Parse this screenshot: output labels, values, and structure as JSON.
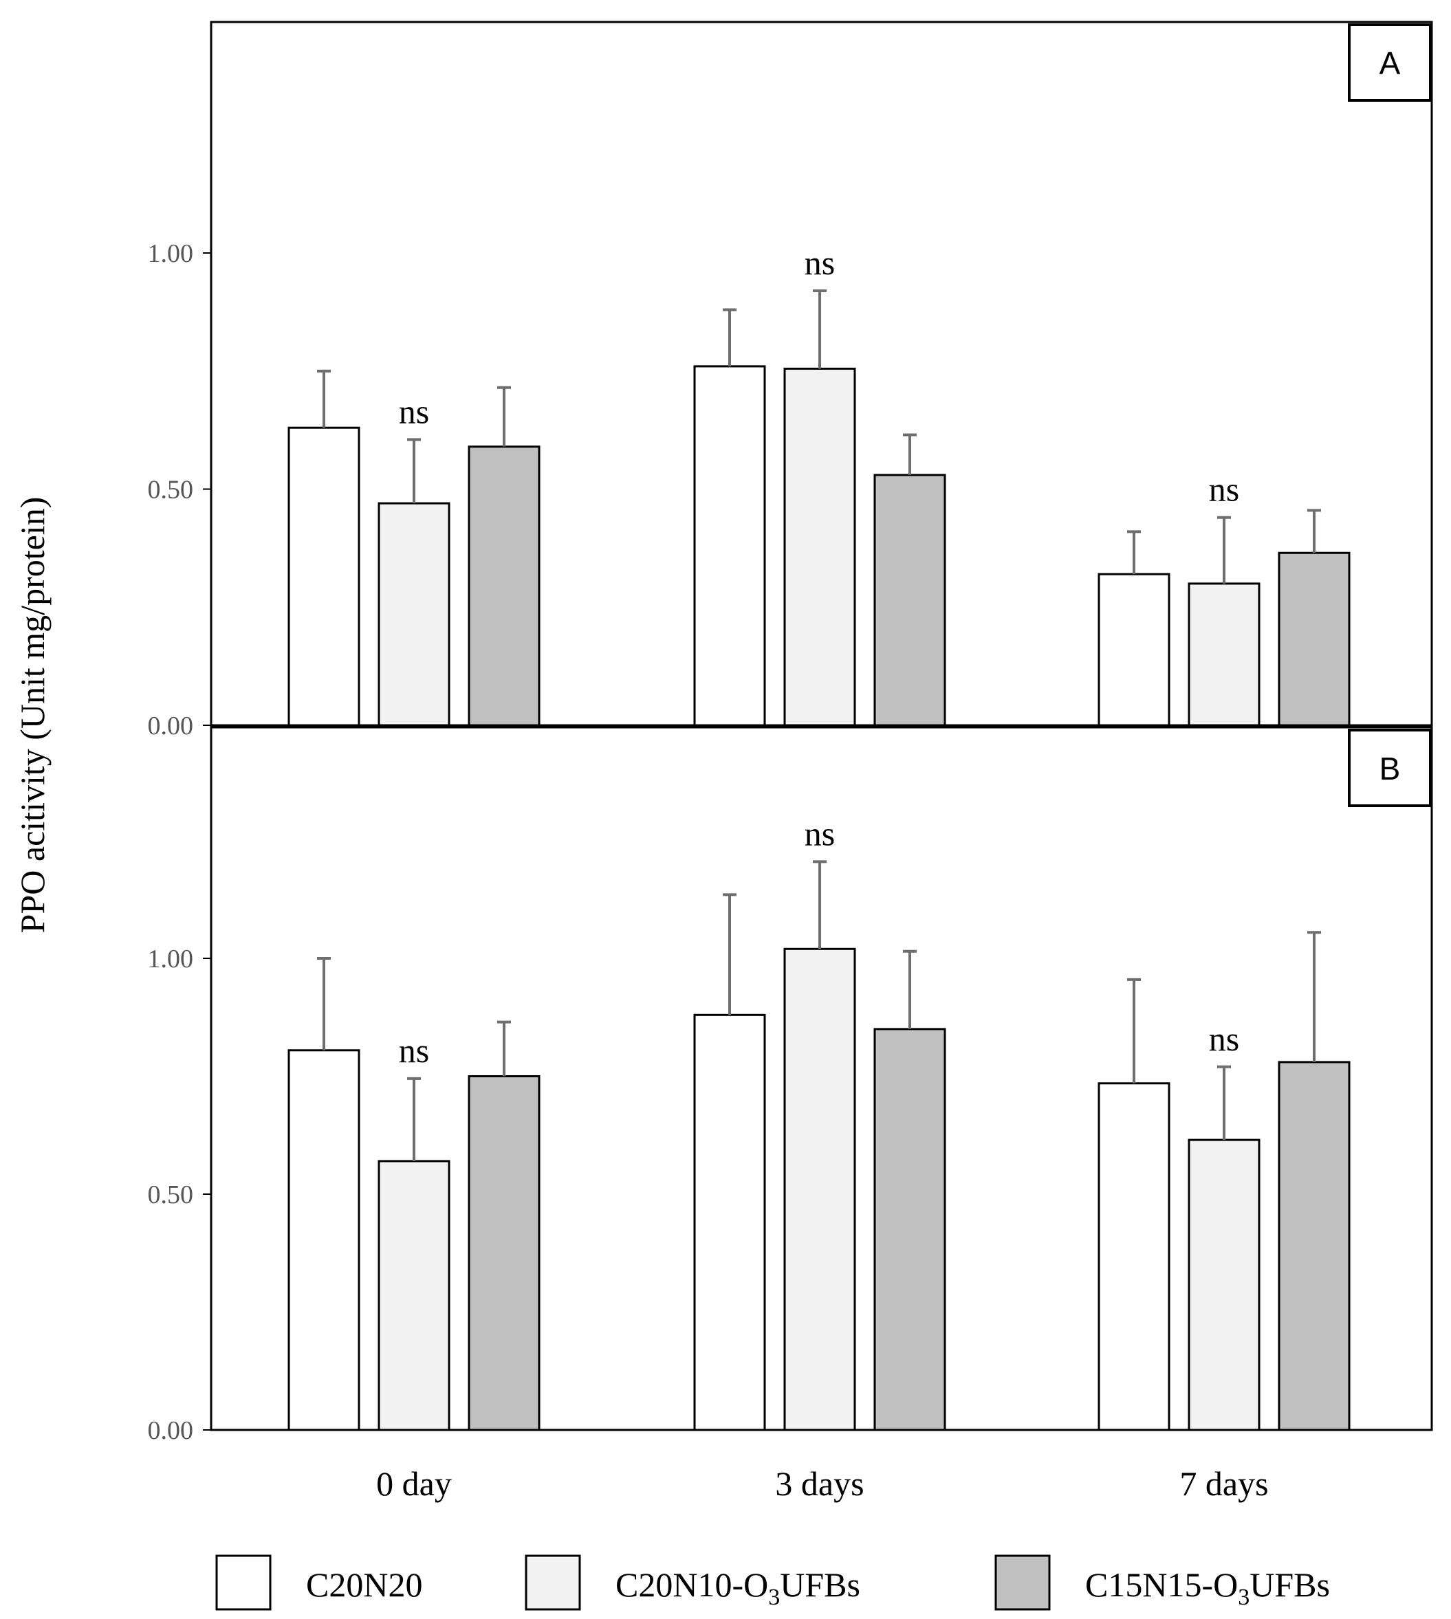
{
  "chart_data": {
    "type": "bar",
    "ylabel": "PPO acitivity (Unit mg/protein)",
    "categories": [
      "0 day",
      "3 days",
      "7 days"
    ],
    "legend": {
      "placement": "bottom",
      "entries": [
        {
          "name": "C20N20",
          "parts": [
            {
              "text": "C20N20"
            }
          ]
        },
        {
          "name": "C20N10-O3UFBs",
          "parts": [
            {
              "text": "C20N10-O"
            },
            {
              "text": "3",
              "sub": true
            },
            {
              "text": "UFBs"
            }
          ]
        },
        {
          "name": "C15N15-O3UFBs",
          "parts": [
            {
              "text": "C15N15-O"
            },
            {
              "text": "3",
              "sub": true
            },
            {
              "text": "UFBs"
            }
          ]
        }
      ]
    },
    "series_colors": [
      "#ffffff",
      "#f2f2f2",
      "#c0c0c0"
    ],
    "error_bar_color": "#6e6e6e",
    "panels": [
      {
        "label": "A",
        "ylim": [
          0,
          1.5
        ],
        "yticks": [
          "0.00",
          "0.50",
          "1.00"
        ],
        "tick_values": [
          0,
          0.5,
          1.0
        ],
        "series": [
          {
            "name": "C20N20",
            "values": [
              0.63,
              0.76,
              0.32
            ],
            "errors": [
              0.12,
              0.12,
              0.09
            ]
          },
          {
            "name": "C20N10-O3UFBs",
            "values": [
              0.47,
              0.755,
              0.3
            ],
            "errors": [
              0.135,
              0.165,
              0.14
            ]
          },
          {
            "name": "C15N15-O3UFBs",
            "values": [
              0.59,
              0.53,
              0.365
            ],
            "errors": [
              0.125,
              0.085,
              0.09
            ]
          }
        ],
        "annotations": [
          {
            "category": 0,
            "text": "ns"
          },
          {
            "category": 1,
            "text": "ns"
          },
          {
            "category": 2,
            "text": "ns"
          }
        ]
      },
      {
        "label": "B",
        "ylim": [
          0,
          1.5
        ],
        "yticks": [
          "0.00",
          "0.50",
          "1.00"
        ],
        "tick_values": [
          0,
          0.5,
          1.0
        ],
        "series": [
          {
            "name": "C20N20",
            "values": [
              0.805,
              0.88,
              0.735
            ],
            "errors": [
              0.195,
              0.255,
              0.22
            ]
          },
          {
            "name": "C20N10-O3UFBs",
            "values": [
              0.57,
              1.02,
              0.615
            ],
            "errors": [
              0.175,
              0.185,
              0.155
            ]
          },
          {
            "name": "C15N15-O3UFBs",
            "values": [
              0.75,
              0.85,
              0.78
            ],
            "errors": [
              0.115,
              0.165,
              0.275
            ]
          }
        ],
        "annotations": [
          {
            "category": 0,
            "text": "ns"
          },
          {
            "category": 1,
            "text": "ns"
          },
          {
            "category": 2,
            "text": "ns"
          }
        ]
      }
    ]
  }
}
